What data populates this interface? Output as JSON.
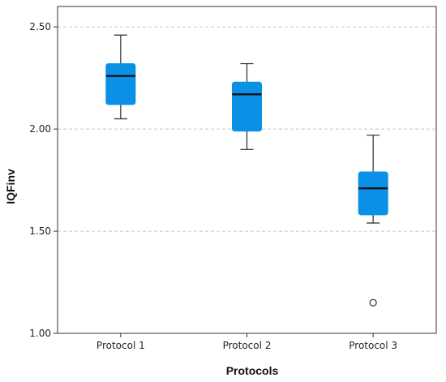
{
  "chart_data": {
    "type": "box",
    "xlabel": "Protocols",
    "ylabel": "IQFinv",
    "ylim": [
      1.0,
      2.6
    ],
    "yticks": [
      1.0,
      1.5,
      2.0,
      2.5
    ],
    "ytick_labels": [
      "1.00",
      "1.50",
      "2.00",
      "2.50"
    ],
    "grid": "horizontal dashed",
    "categories": [
      "Protocol 1",
      "Protocol 2",
      "Protocol 3"
    ],
    "boxes": [
      {
        "category": "Protocol 1",
        "whisker_low": 2.05,
        "q1": 2.12,
        "median": 2.26,
        "q3": 2.32,
        "whisker_high": 2.46,
        "outliers": []
      },
      {
        "category": "Protocol 2",
        "whisker_low": 1.9,
        "q1": 1.99,
        "median": 2.17,
        "q3": 2.23,
        "whisker_high": 2.32,
        "outliers": []
      },
      {
        "category": "Protocol 3",
        "whisker_low": 1.54,
        "q1": 1.58,
        "median": 1.71,
        "q3": 1.79,
        "whisker_high": 1.97,
        "outliers": [
          1.15
        ]
      }
    ],
    "colors": {
      "box_fill": "#0a91e6",
      "box_edge": "#2a2a2a",
      "median": "#111111",
      "grid": "#c8c8c8",
      "axis": "#333333"
    }
  }
}
